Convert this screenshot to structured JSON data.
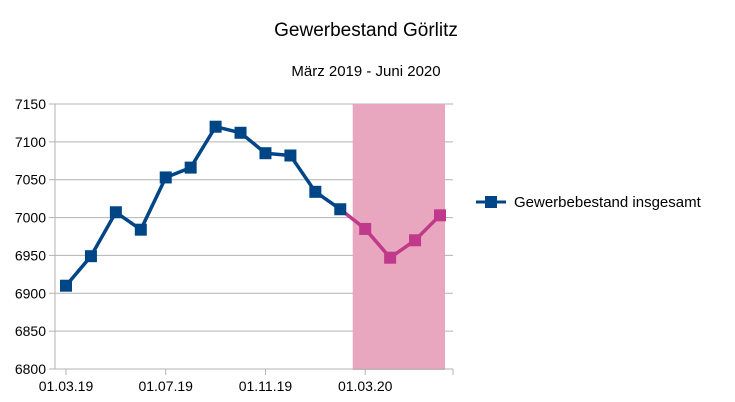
{
  "chart_data": {
    "type": "line",
    "title": "Gewerbestand Görlitz",
    "subtitle": "März 2019 - Juni 2020",
    "xlabel": "",
    "ylabel": "",
    "x_ticks": [
      "01.03.19",
      "01.07.19",
      "01.11.19",
      "01.03.20"
    ],
    "x_tick_indices": [
      0,
      4,
      8,
      12
    ],
    "categories": [
      "03.2019",
      "04.2019",
      "05.2019",
      "06.2019",
      "07.2019",
      "08.2019",
      "09.2019",
      "10.2019",
      "11.2019",
      "12.2019",
      "01.2020",
      "02.2020",
      "03.2020",
      "04.2020",
      "05.2020",
      "06.2020"
    ],
    "ylim": [
      6800,
      7150
    ],
    "y_ticks": [
      6800,
      6850,
      6900,
      6950,
      7000,
      7050,
      7100,
      7150
    ],
    "grid": "horizontal",
    "legend_position": "right",
    "series": [
      {
        "name": "Gewerbebestand insgesamt",
        "values": [
          6910,
          6949,
          7007,
          6984,
          7053,
          7066,
          7120,
          7112,
          7085,
          7082,
          7034,
          7011,
          6985,
          6947,
          6970,
          7003
        ]
      }
    ],
    "highlight": {
      "from_index": 11.5,
      "to_index": 15.2,
      "color": "#e8a6bf"
    },
    "colors": {
      "line": "#004586",
      "highlight_line": "#c0398a",
      "grid": "#b3b3b3"
    },
    "highlight_start_index": 11
  }
}
